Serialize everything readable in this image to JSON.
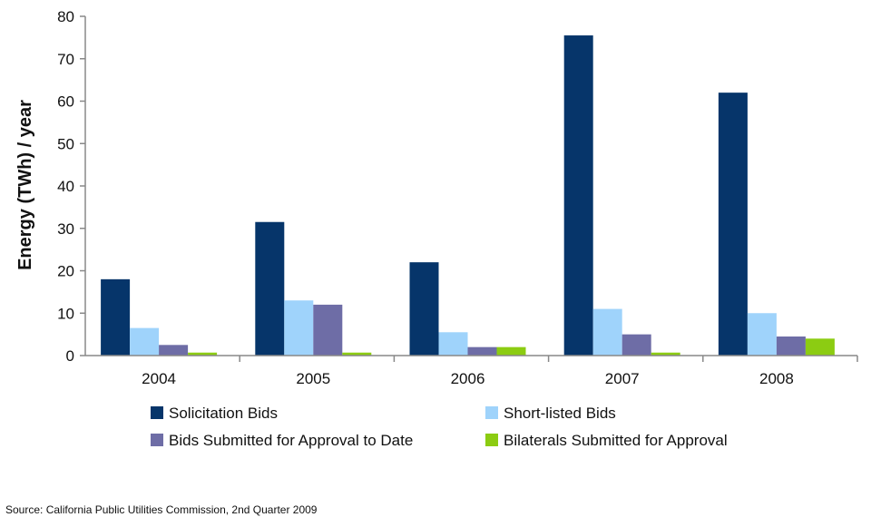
{
  "chart_data": {
    "type": "bar",
    "categories": [
      "2004",
      "2005",
      "2006",
      "2007",
      "2008"
    ],
    "series": [
      {
        "name": "Solicitation Bids",
        "color": "#06356a",
        "values": [
          18,
          31.5,
          22,
          75.5,
          62
        ]
      },
      {
        "name": "Short-listed Bids",
        "color": "#9fd3fb",
        "values": [
          6.5,
          13,
          5.5,
          11,
          10
        ]
      },
      {
        "name": "Bids Submitted for Approval to Date",
        "color": "#6e6da6",
        "values": [
          2.5,
          12,
          2,
          5,
          4.5
        ]
      },
      {
        "name": "Bilaterals Submitted for Approval",
        "color": "#8ccc12",
        "values": [
          0.7,
          0.7,
          2,
          0.7,
          4
        ]
      }
    ],
    "ylabel": "Energy (TWh) / year",
    "xlabel": "",
    "ylim": [
      0,
      80
    ],
    "yticks": [
      0,
      10,
      20,
      30,
      40,
      50,
      60,
      70,
      80
    ],
    "grid": false,
    "legend_position": "bottom",
    "source": "Source: California Public Utilities Commission, 2nd Quarter 2009"
  }
}
